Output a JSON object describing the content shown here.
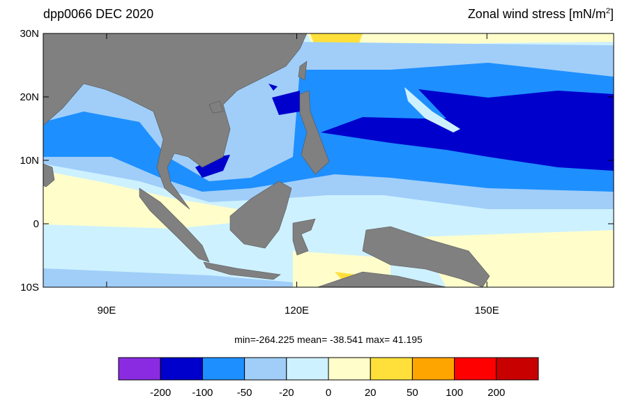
{
  "map": {
    "title_left": "dpp0066 DEC 2020",
    "title_right": {
      "text": "Zonal wind stress [mN/m",
      "sup": "2",
      "end": "]"
    },
    "lon_range": [
      80,
      170
    ],
    "lat_range": [
      -10,
      30
    ],
    "lat_ticks": [
      {
        "value": 30,
        "label": "30N"
      },
      {
        "value": 20,
        "label": "20N"
      },
      {
        "value": 10,
        "label": "10N"
      },
      0,
      {
        "value": -10,
        "label": "10S"
      }
    ],
    "lon_ticks": [
      {
        "value": 90,
        "label": "90E"
      },
      {
        "value": 120,
        "label": "120E"
      },
      {
        "value": 150,
        "label": "150E"
      }
    ],
    "stats": "min=-264.225  mean= -38.541  max=  41.195",
    "colorbar": {
      "levels": [
        -200,
        -100,
        -50,
        -20,
        0,
        20,
        50,
        100,
        200
      ],
      "colors": [
        "#8a2be2",
        "#0000cd",
        "#1e8fff",
        "#a0cef9",
        "#cef1ff",
        "#fffecb",
        "#ffe03a",
        "#ffa500",
        "#ff0000",
        "#c80000"
      ]
    }
  }
}
